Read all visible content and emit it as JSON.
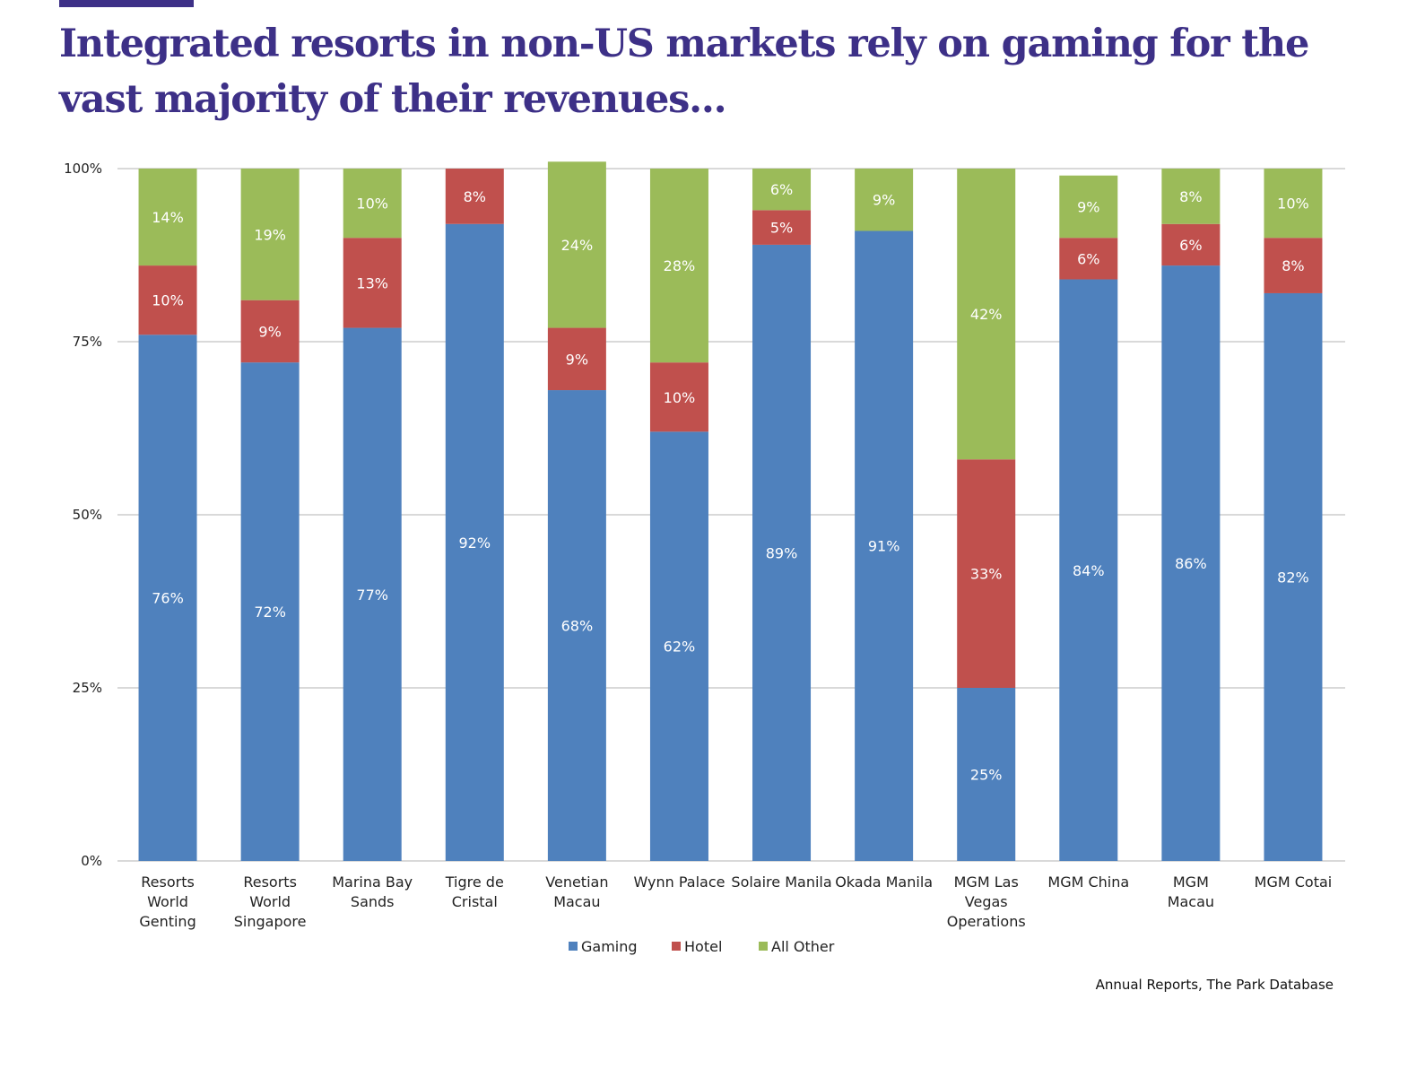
{
  "header": {
    "title": "Integrated resorts in non-US markets rely on gaming for the vast majority of their revenues..."
  },
  "source": "Annual Reports, The Park Database",
  "chart_data": {
    "type": "bar",
    "stacked": true,
    "percent": true,
    "title": "Integrated resorts in non-US markets rely on gaming for the vast majority of their revenues...",
    "xlabel": "",
    "ylabel": "",
    "ylim": [
      0,
      100
    ],
    "yticks": [
      "0%",
      "25%",
      "50%",
      "75%",
      "100%"
    ],
    "grid": true,
    "legend_position": "bottom",
    "categories": [
      [
        "Resorts",
        "World",
        "Genting"
      ],
      [
        "Resorts",
        "World",
        "Singapore"
      ],
      [
        "Marina Bay",
        "Sands"
      ],
      [
        "Tigre de",
        "Cristal"
      ],
      [
        "Venetian",
        "Macau"
      ],
      [
        "Wynn Palace"
      ],
      [
        "Solaire Manila"
      ],
      [
        "Okada Manila"
      ],
      [
        "MGM Las",
        "Vegas",
        "Operations"
      ],
      [
        "MGM China"
      ],
      [
        "MGM",
        "Macau"
      ],
      [
        "MGM Cotai"
      ]
    ],
    "series": [
      {
        "name": "Gaming",
        "color": "#4f81bd",
        "values": [
          76,
          72,
          77,
          92,
          68,
          62,
          89,
          91,
          25,
          84,
          86,
          82
        ]
      },
      {
        "name": "Hotel",
        "color": "#c0504d",
        "values": [
          10,
          9,
          13,
          8,
          9,
          10,
          5,
          0,
          33,
          6,
          6,
          8
        ]
      },
      {
        "name": "All Other",
        "color": "#9bbb59",
        "values": [
          14,
          19,
          10,
          0,
          24,
          28,
          6,
          9,
          42,
          9,
          8,
          10
        ]
      }
    ]
  }
}
